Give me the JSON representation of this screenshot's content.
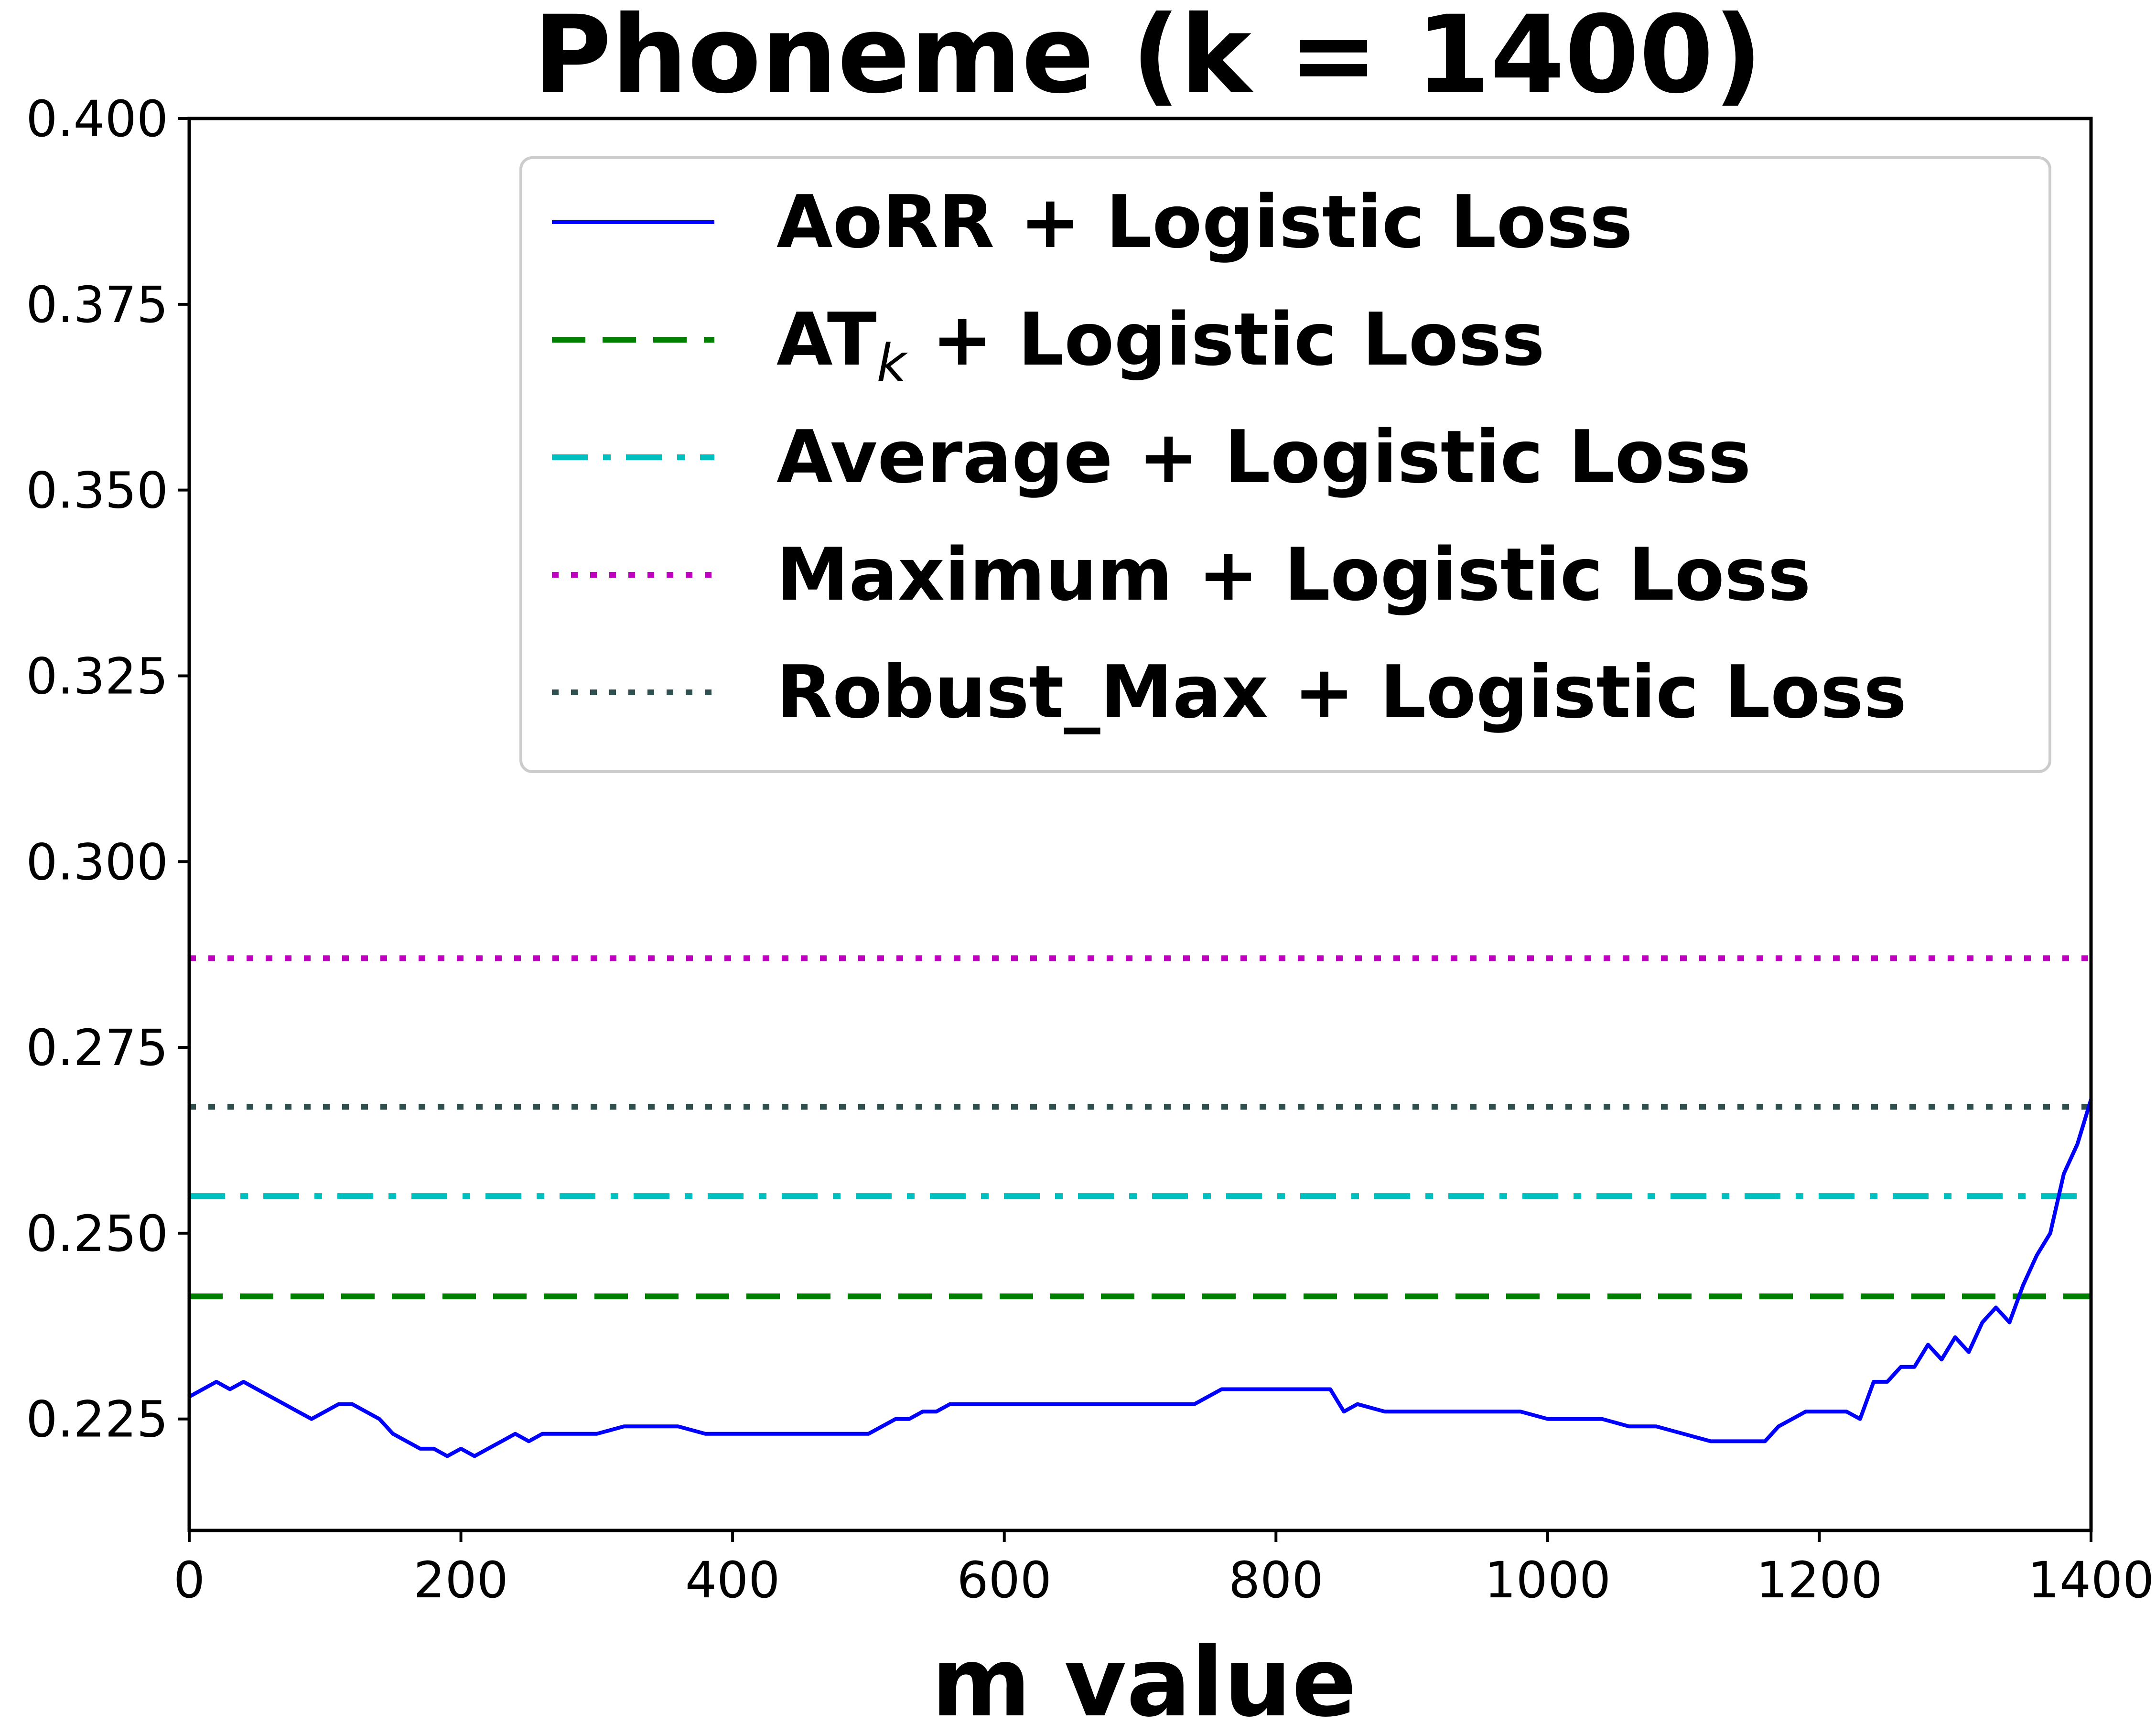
{
  "chart_data": {
    "type": "line",
    "title": "Phoneme (k = 1400)",
    "xlabel": "m value",
    "ylabel": "",
    "xlim": [
      0,
      1400
    ],
    "ylim": [
      0.21,
      0.4
    ],
    "xticks": [
      0,
      200,
      400,
      600,
      800,
      1000,
      1200,
      1400
    ],
    "xtick_labels": [
      "0",
      "200",
      "400",
      "600",
      "800",
      "1000",
      "1200",
      "1400"
    ],
    "yticks": [
      0.225,
      0.25,
      0.275,
      0.3,
      0.325,
      0.35,
      0.375,
      0.4
    ],
    "ytick_labels": [
      "0.225",
      "0.250",
      "0.275",
      "0.300",
      "0.325",
      "0.350",
      "0.375",
      "0.400"
    ],
    "grid": false,
    "legend_position": "top-right",
    "series": [
      {
        "name": "AoRR + Logistic Loss",
        "color": "#0000ff",
        "style": "solid",
        "x": [
          0,
          10,
          20,
          30,
          40,
          50,
          60,
          70,
          80,
          90,
          100,
          110,
          120,
          130,
          140,
          150,
          160,
          170,
          180,
          190,
          200,
          210,
          220,
          230,
          240,
          250,
          260,
          280,
          300,
          320,
          340,
          360,
          380,
          400,
          420,
          440,
          460,
          480,
          500,
          510,
          520,
          530,
          540,
          550,
          560,
          580,
          600,
          620,
          640,
          660,
          680,
          700,
          720,
          740,
          760,
          780,
          800,
          820,
          840,
          850,
          860,
          880,
          900,
          920,
          940,
          960,
          980,
          1000,
          1020,
          1040,
          1060,
          1080,
          1100,
          1120,
          1140,
          1160,
          1170,
          1180,
          1190,
          1200,
          1210,
          1220,
          1230,
          1240,
          1250,
          1260,
          1270,
          1280,
          1290,
          1300,
          1310,
          1320,
          1330,
          1340,
          1350,
          1360,
          1370,
          1380,
          1390,
          1400
        ],
        "values": [
          0.228,
          0.229,
          0.23,
          0.229,
          0.23,
          0.229,
          0.228,
          0.227,
          0.226,
          0.225,
          0.226,
          0.227,
          0.227,
          0.226,
          0.225,
          0.223,
          0.222,
          0.221,
          0.221,
          0.22,
          0.221,
          0.22,
          0.221,
          0.222,
          0.223,
          0.222,
          0.223,
          0.223,
          0.223,
          0.224,
          0.224,
          0.224,
          0.223,
          0.223,
          0.223,
          0.223,
          0.223,
          0.223,
          0.223,
          0.224,
          0.225,
          0.225,
          0.226,
          0.226,
          0.227,
          0.227,
          0.227,
          0.227,
          0.227,
          0.227,
          0.227,
          0.227,
          0.227,
          0.227,
          0.229,
          0.229,
          0.229,
          0.229,
          0.229,
          0.226,
          0.227,
          0.226,
          0.226,
          0.226,
          0.226,
          0.226,
          0.226,
          0.225,
          0.225,
          0.225,
          0.224,
          0.224,
          0.223,
          0.222,
          0.222,
          0.222,
          0.224,
          0.225,
          0.226,
          0.226,
          0.226,
          0.226,
          0.225,
          0.23,
          0.23,
          0.232,
          0.232,
          0.235,
          0.233,
          0.236,
          0.234,
          0.238,
          0.24,
          0.238,
          0.243,
          0.247,
          0.25,
          0.258,
          0.262,
          0.268
        ]
      },
      {
        "name": "AT_k + Logistic Loss",
        "color": "#008000",
        "style": "dashed",
        "x": [
          0,
          1400
        ],
        "values": [
          0.2415,
          0.2415
        ]
      },
      {
        "name": "Average + Logistic Loss",
        "color": "#00bfbf",
        "style": "dashdot",
        "x": [
          0,
          1400
        ],
        "values": [
          0.255,
          0.255
        ]
      },
      {
        "name": "Maximum + Logistic Loss",
        "color": "#bf00bf",
        "style": "dotted",
        "x": [
          0,
          1400
        ],
        "values": [
          0.287,
          0.287
        ]
      },
      {
        "name": "Robust_Max + Logistic Loss",
        "color": "#2f4f4f",
        "style": "dotted",
        "x": [
          0,
          1400
        ],
        "values": [
          0.267,
          0.267
        ]
      }
    ],
    "legend_entries": [
      {
        "label_main": "AoRR + Logistic Loss",
        "label_sub": "",
        "label_tail": ""
      },
      {
        "label_main": "AT",
        "label_sub": "k",
        "label_tail": " + Logistic Loss"
      },
      {
        "label_main": "Average + Logistic Loss",
        "label_sub": "",
        "label_tail": ""
      },
      {
        "label_main": "Maximum + Logistic Loss",
        "label_sub": "",
        "label_tail": ""
      },
      {
        "label_main": "Robust_Max + Logistic Loss",
        "label_sub": "",
        "label_tail": ""
      }
    ]
  }
}
